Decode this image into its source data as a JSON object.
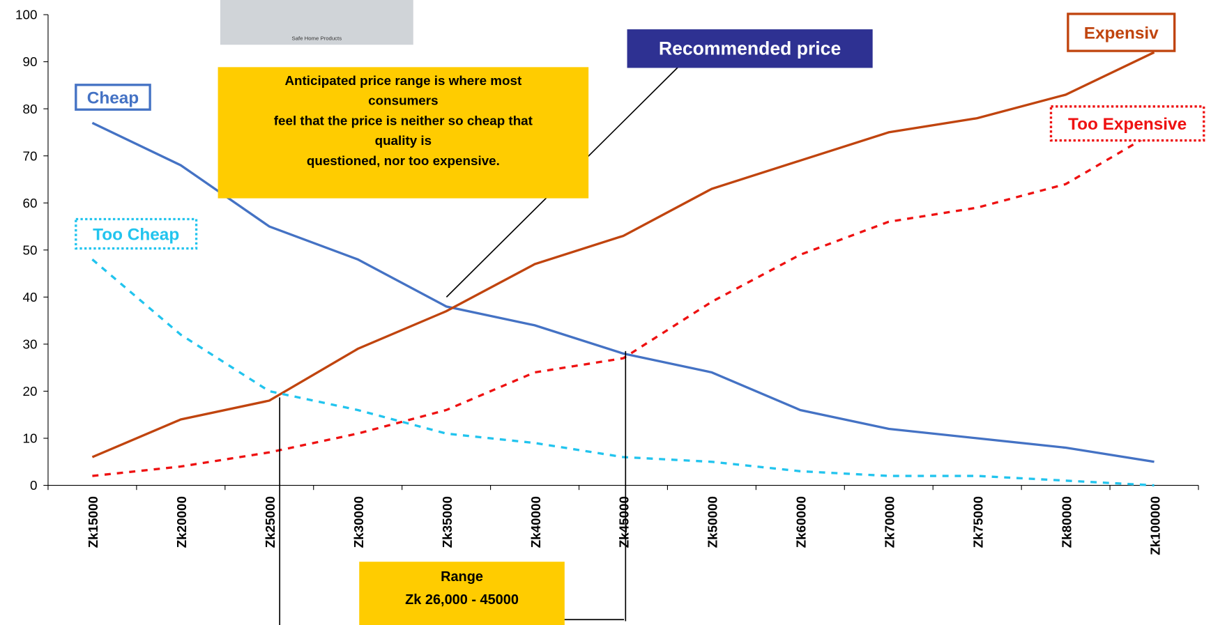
{
  "chart_data": {
    "type": "line",
    "categories": [
      "Zk15000",
      "Zk20000",
      "Zk25000",
      "Zk30000",
      "Zk35000",
      "Zk40000",
      "Zk45000",
      "Zk50000",
      "Zk60000",
      "Zk70000",
      "Zk75000",
      "Zk80000",
      "Zk100000"
    ],
    "series": [
      {
        "name": "Cheap",
        "color": "#4472c4",
        "dash": false,
        "values": [
          77,
          68,
          55,
          48,
          38,
          34,
          28,
          24,
          16,
          12,
          10,
          8,
          5
        ]
      },
      {
        "name": "Expensiv",
        "color": "#c0440e",
        "dash": false,
        "values": [
          6,
          14,
          18,
          29,
          37,
          47,
          53,
          63,
          69,
          75,
          78,
          83,
          92
        ]
      },
      {
        "name": "Too Cheap",
        "color": "#22c4ee",
        "dash": true,
        "values": [
          48,
          32,
          20,
          16,
          11,
          9,
          6,
          5,
          3,
          2,
          2,
          1,
          0
        ]
      },
      {
        "name": "Too Expensive",
        "color": "#ee1111",
        "dash": true,
        "values": [
          2,
          4,
          7,
          11,
          16,
          24,
          27,
          39,
          49,
          56,
          59,
          64,
          75
        ]
      }
    ],
    "ylim": [
      0,
      100
    ],
    "yticks": [
      0,
      10,
      20,
      30,
      40,
      50,
      60,
      70,
      80,
      90,
      100
    ],
    "annotations": {
      "recommended": "Recommended price",
      "anticipated": [
        "Anticipated price range is where most",
        "consumers",
        "feel that the price is neither so cheap that",
        "quality is",
        "questioned, nor too expensive."
      ],
      "range": [
        "Range",
        "Zk 26,000 - 45000"
      ],
      "logo": "Safe Home Products"
    }
  }
}
